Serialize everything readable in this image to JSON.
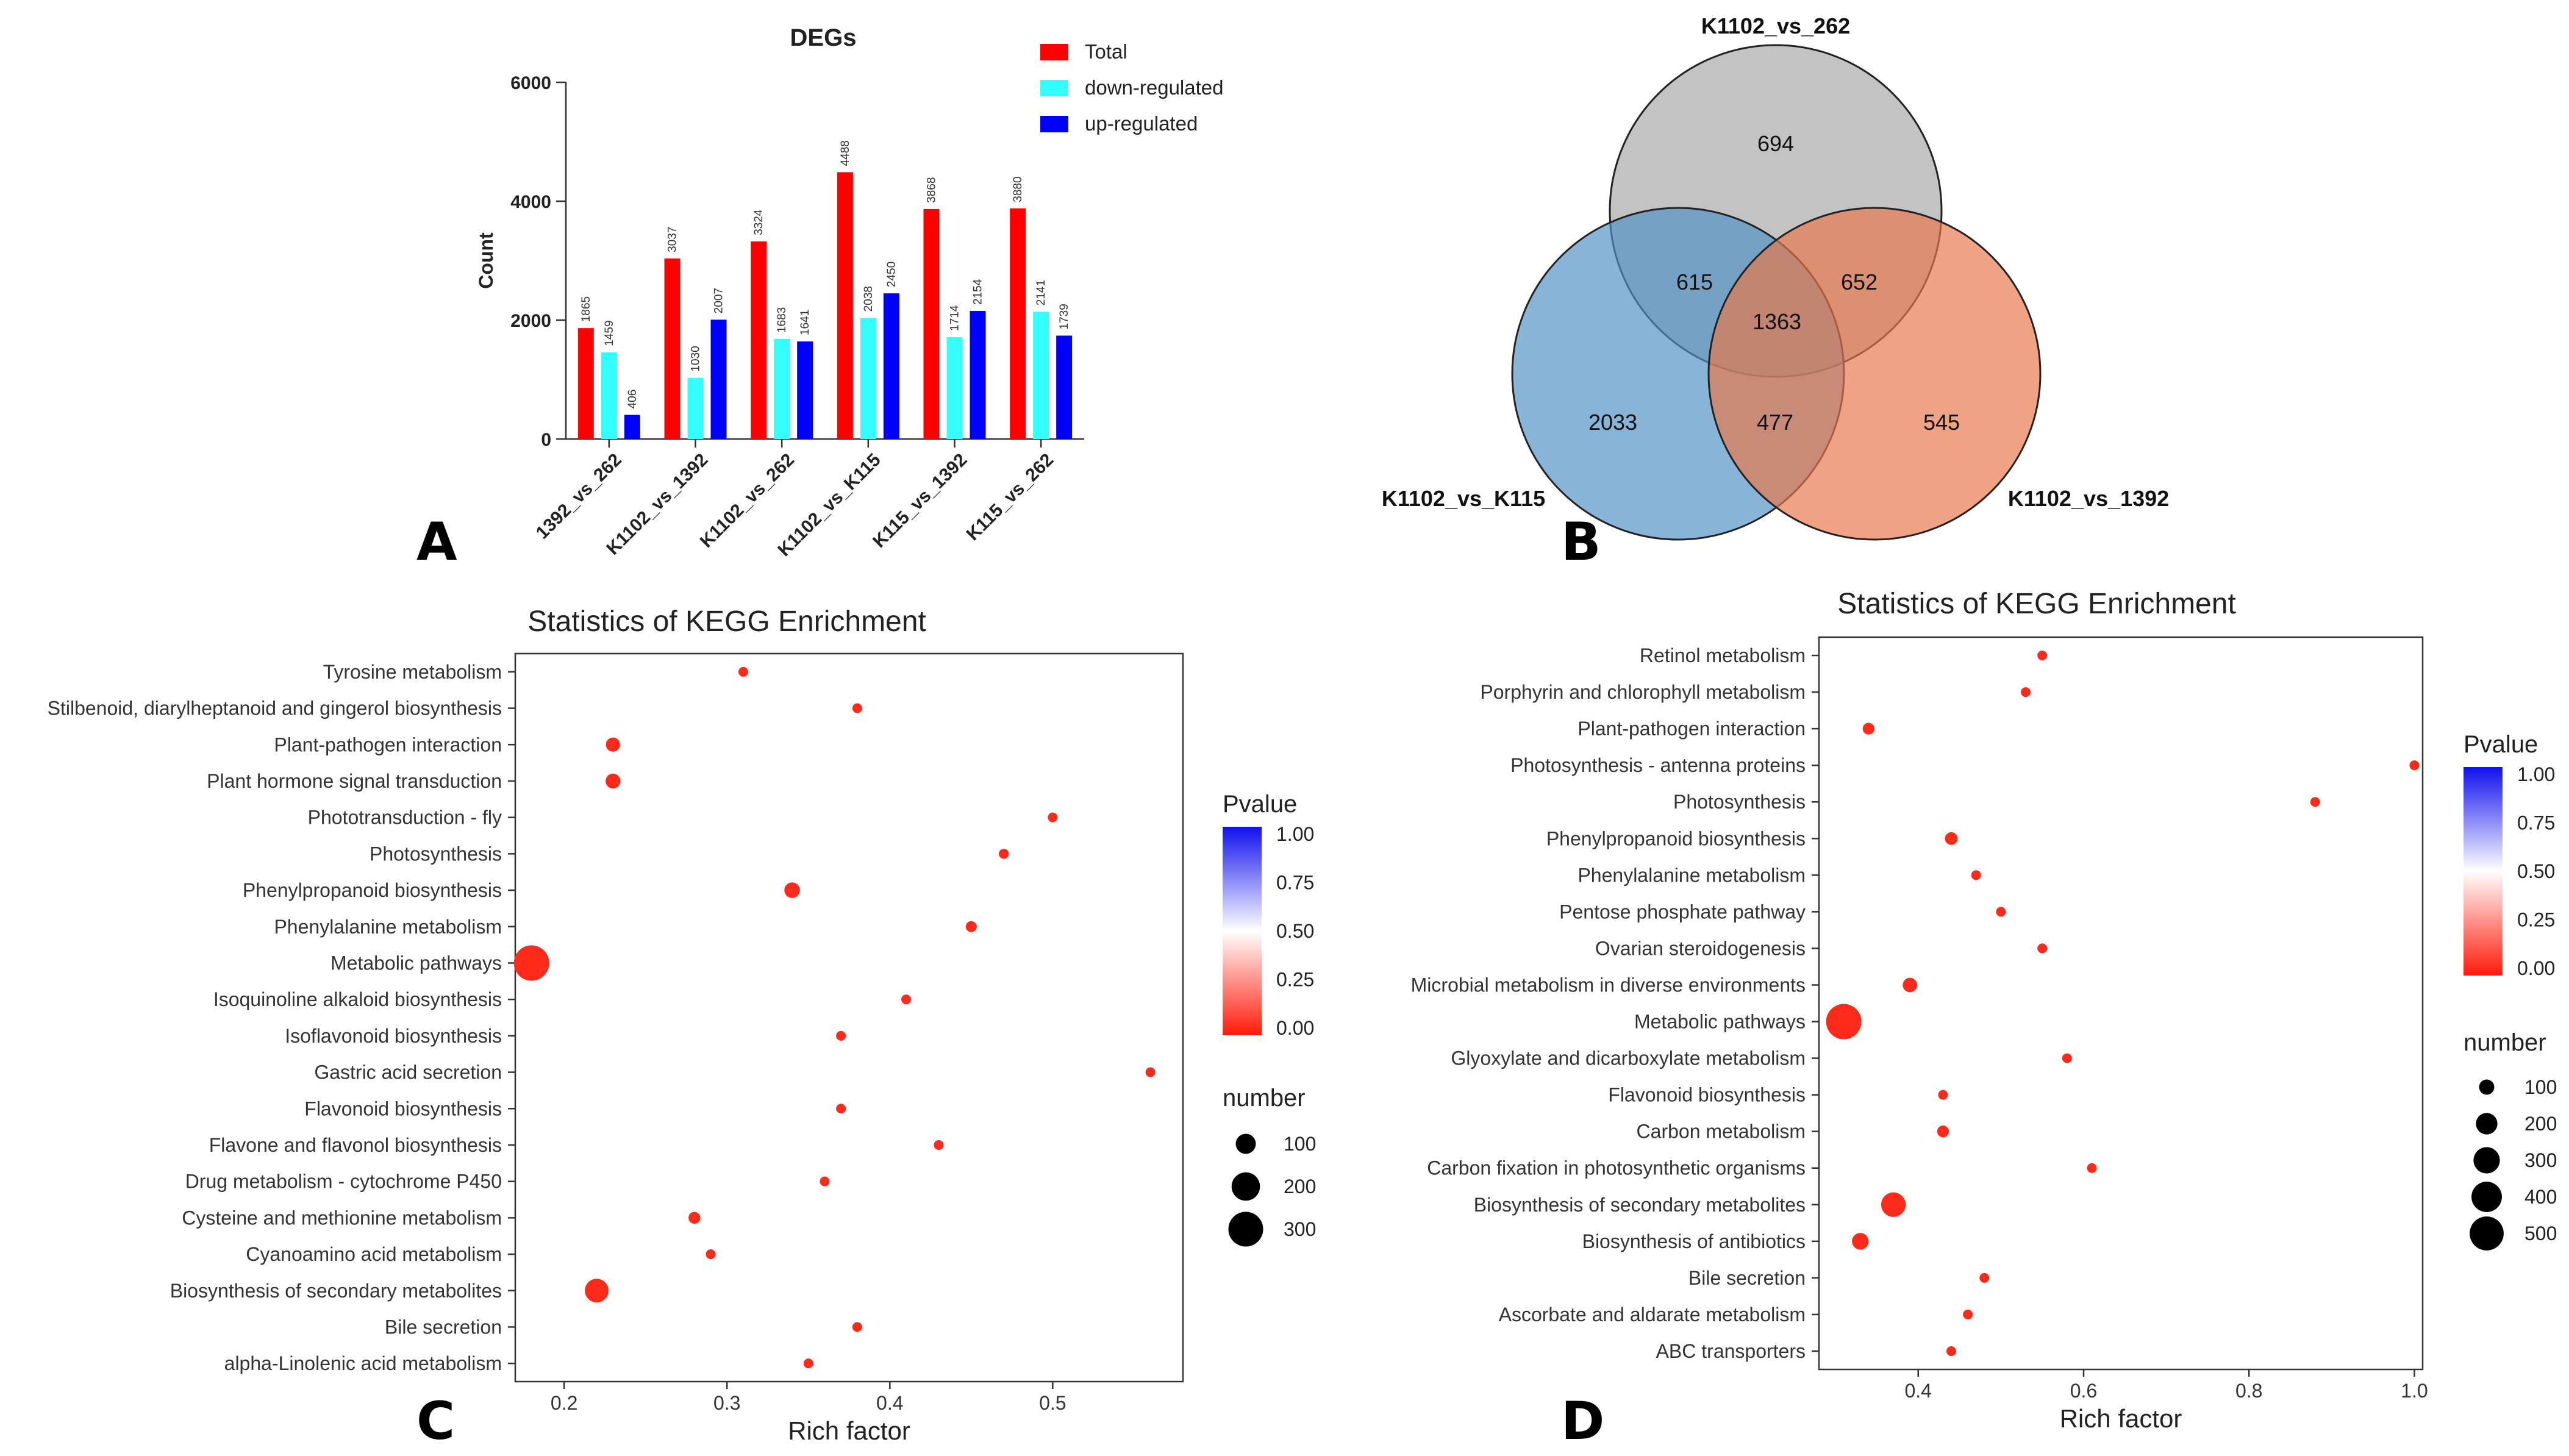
{
  "chart_data": [
    {
      "panel": "A",
      "type": "bar",
      "title": "DEGs",
      "xlabel": "",
      "ylabel": "Count",
      "ylim": [
        0,
        6000
      ],
      "yticks": [
        0,
        2000,
        4000,
        6000
      ],
      "categories": [
        "1392_vs_262",
        "K1102_vs_1392",
        "K1102_vs_262",
        "K1102_vs_K115",
        "K115_vs_1392",
        "K115_vs_262"
      ],
      "series": [
        {
          "name": "Total",
          "color": "#ff0000",
          "values": [
            1865,
            3037,
            3324,
            4488,
            3868,
            3880
          ]
        },
        {
          "name": "down-regulated",
          "color": "#33ffff",
          "values": [
            1459,
            1030,
            1683,
            2038,
            1714,
            2141
          ]
        },
        {
          "name": "up-regulated",
          "color": "#0000ff",
          "values": [
            406,
            2007,
            1641,
            2450,
            2154,
            1739
          ]
        }
      ],
      "legend_position": "top-right",
      "bar_labels": [
        [
          "1865",
          "1459",
          "406"
        ],
        [
          "3037",
          "1030",
          "2007"
        ],
        [
          "3324",
          "1683",
          "1641"
        ],
        [
          "4488",
          "2038",
          "2450"
        ],
        [
          "3868",
          "1714",
          "2154"
        ],
        [
          "3880",
          "2141",
          "1739"
        ]
      ]
    },
    {
      "panel": "B",
      "type": "venn",
      "sets": [
        {
          "name": "K1102_vs_262",
          "color": "#a6a6a6"
        },
        {
          "name": "K1102_vs_K115",
          "color": "#4f91c4"
        },
        {
          "name": "K1102_vs_1392",
          "color": "#e8784a"
        }
      ],
      "regions": {
        "only_262": "694",
        "only_K115": "2033",
        "only_1392": "545",
        "262_K115": "615",
        "262_1392": "652",
        "K115_1392": "477",
        "all": "1363"
      }
    },
    {
      "panel": "C",
      "type": "scatter",
      "title": "Statistics of KEGG Enrichment",
      "xlabel": "Rich factor",
      "xlim": [
        0.17,
        0.58
      ],
      "xticks": [
        "0.2",
        "0.3",
        "0.4",
        "0.5"
      ],
      "xtick_values": [
        0.2,
        0.3,
        0.4,
        0.5
      ],
      "point_color": "#ff2a1a",
      "categories": [
        "Tyrosine metabolism",
        "Stilbenoid, diarylheptanoid and gingerol biosynthesis",
        "Plant-pathogen interaction",
        "Plant hormone signal transduction",
        "Phototransduction - fly",
        "Photosynthesis",
        "Phenylpropanoid biosynthesis",
        "Phenylalanine metabolism",
        "Metabolic pathways",
        "Isoquinoline alkaloid biosynthesis",
        "Isoflavonoid biosynthesis",
        "Gastric acid secretion",
        "Flavonoid biosynthesis",
        "Flavone and flavonol biosynthesis",
        "Drug metabolism - cytochrome P450",
        "Cysteine and methionine metabolism",
        "Cyanoamino acid metabolism",
        "Biosynthesis of secondary metabolites",
        "Bile secretion",
        "alpha-Linolenic acid metabolism"
      ],
      "rich_factor": [
        0.31,
        0.38,
        0.23,
        0.23,
        0.5,
        0.47,
        0.34,
        0.45,
        0.18,
        0.41,
        0.37,
        0.56,
        0.37,
        0.43,
        0.36,
        0.28,
        0.29,
        0.22,
        0.38,
        0.35
      ],
      "number": [
        20,
        20,
        50,
        55,
        5,
        25,
        60,
        30,
        310,
        10,
        15,
        5,
        20,
        12,
        15,
        35,
        20,
        140,
        18,
        20
      ],
      "pvalue_legend": {
        "title": "Pvalue",
        "ticks": [
          "1.00",
          "0.75",
          "0.50",
          "0.25",
          "0.00"
        ]
      },
      "size_legend": {
        "title": "number",
        "ticks": [
          "100",
          "200",
          "300"
        ],
        "tick_values": [
          100,
          200,
          300
        ]
      }
    },
    {
      "panel": "D",
      "type": "scatter",
      "title": "Statistics of KEGG Enrichment",
      "xlabel": "Rich factor",
      "xlim": [
        0.28,
        1.01
      ],
      "xticks": [
        "0.4",
        "0.6",
        "0.8",
        "1.0"
      ],
      "xtick_values": [
        0.4,
        0.6,
        0.8,
        1.0
      ],
      "point_color": "#ff2a1a",
      "categories": [
        "Retinol metabolism",
        "Porphyrin and chlorophyll metabolism",
        "Plant-pathogen interaction",
        "Photosynthesis - antenna proteins",
        "Photosynthesis",
        "Phenylpropanoid biosynthesis",
        "Phenylalanine metabolism",
        "Pentose phosphate pathway",
        "Ovarian steroidogenesis",
        "Microbial metabolism in diverse environments",
        "Metabolic pathways",
        "Glyoxylate and dicarboxylate metabolism",
        "Flavonoid biosynthesis",
        "Carbon metabolism",
        "Carbon fixation in photosynthetic organisms",
        "Biosynthesis of secondary metabolites",
        "Biosynthesis of antibiotics",
        "Bile secretion",
        "Ascorbate and aldarate metabolism",
        "ABC transporters"
      ],
      "rich_factor": [
        0.55,
        0.53,
        0.34,
        1.0,
        0.88,
        0.44,
        0.47,
        0.5,
        0.55,
        0.39,
        0.31,
        0.58,
        0.43,
        0.43,
        0.61,
        0.37,
        0.33,
        0.48,
        0.46,
        0.44
      ],
      "number": [
        5,
        20,
        60,
        10,
        30,
        70,
        25,
        20,
        5,
        90,
        540,
        20,
        15,
        60,
        20,
        260,
        120,
        20,
        20,
        20
      ],
      "pvalue_legend": {
        "title": "Pvalue",
        "ticks": [
          "1.00",
          "0.75",
          "0.50",
          "0.25",
          "0.00"
        ]
      },
      "size_legend": {
        "title": "number",
        "ticks": [
          "100",
          "200",
          "300",
          "400",
          "500"
        ],
        "tick_values": [
          100,
          200,
          300,
          400,
          500
        ]
      }
    }
  ],
  "panel_labels": {
    "a": "A",
    "b": "B",
    "c": "C",
    "d": "D"
  }
}
